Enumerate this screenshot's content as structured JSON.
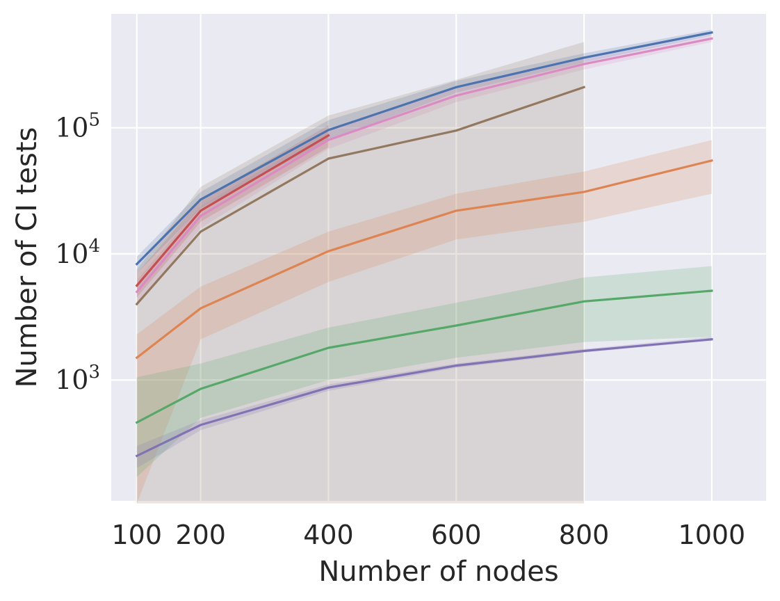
{
  "chart_data": {
    "type": "line",
    "title": "",
    "xlabel": "Number of nodes",
    "ylabel": "Number of CI tests",
    "yscale": "log",
    "xlim": [
      60,
      1085
    ],
    "ylim": [
      110,
      800000
    ],
    "x_ticks": [
      100,
      200,
      400,
      600,
      800,
      1000
    ],
    "x_tick_labels": [
      "100",
      "200",
      "400",
      "600",
      "800",
      "1000"
    ],
    "y_ticks": [
      {
        "value": 1000,
        "base": "10",
        "exp": "3"
      },
      {
        "value": 10000,
        "base": "10",
        "exp": "4"
      },
      {
        "value": 100000,
        "base": "10",
        "exp": "5"
      }
    ],
    "grid": true,
    "background": "#eaeaf2",
    "series": [
      {
        "name": "blue",
        "color": "#4c72b0",
        "x": [
          100,
          200,
          400,
          600,
          800,
          1000
        ],
        "values": [
          8300,
          27000,
          96000,
          210000,
          360000,
          570000
        ],
        "lower": [
          7000,
          23000,
          80000,
          190000,
          330000,
          540000
        ],
        "upper": [
          9500,
          31000,
          115000,
          235000,
          390000,
          600000
        ]
      },
      {
        "name": "pink",
        "color": "#da8bc3",
        "x": [
          100,
          200,
          400,
          600,
          800,
          1000
        ],
        "values": [
          5000,
          20000,
          80000,
          180000,
          320000,
          510000
        ],
        "lower": [
          4000,
          16000,
          68000,
          160000,
          290000,
          480000
        ],
        "upper": [
          6200,
          24000,
          95000,
          205000,
          350000,
          540000
        ]
      },
      {
        "name": "red",
        "color": "#c44e52",
        "x": [
          100,
          200,
          400
        ],
        "values": [
          5600,
          22000,
          87000
        ],
        "lower": [
          4500,
          18000,
          70000
        ],
        "upper": [
          7000,
          27000,
          105000
        ]
      },
      {
        "name": "brown",
        "color": "#937860",
        "x": [
          100,
          200,
          400,
          600,
          800
        ],
        "values": [
          4000,
          15000,
          57000,
          95000,
          210000
        ],
        "lower": [
          105,
          105,
          105,
          105,
          105
        ],
        "upper": [
          7500,
          34000,
          125000,
          240000,
          480000
        ]
      },
      {
        "name": "orange",
        "color": "#dd8452",
        "x": [
          100,
          200,
          400,
          600,
          800,
          1000
        ],
        "values": [
          1500,
          3700,
          10500,
          22000,
          31000,
          55000
        ],
        "lower": [
          105,
          2100,
          6000,
          13000,
          18000,
          30000
        ],
        "upper": [
          2300,
          5500,
          15000,
          30000,
          45000,
          80000
        ]
      },
      {
        "name": "green",
        "color": "#55a868",
        "x": [
          100,
          200,
          400,
          600,
          800,
          1000
        ],
        "values": [
          460,
          850,
          1800,
          2700,
          4200,
          5100
        ],
        "lower": [
          170,
          500,
          1000,
          1500,
          2000,
          2200
        ],
        "upper": [
          1050,
          1350,
          2600,
          4100,
          6500,
          8000
        ]
      },
      {
        "name": "purple",
        "color": "#8172b3",
        "x": [
          100,
          200,
          400,
          600,
          800,
          1000
        ],
        "values": [
          250,
          440,
          870,
          1300,
          1700,
          2100
        ],
        "lower": [
          200,
          400,
          820,
          1250,
          1650,
          2050
        ],
        "upper": [
          300,
          480,
          920,
          1350,
          1760,
          2200
        ]
      }
    ]
  }
}
